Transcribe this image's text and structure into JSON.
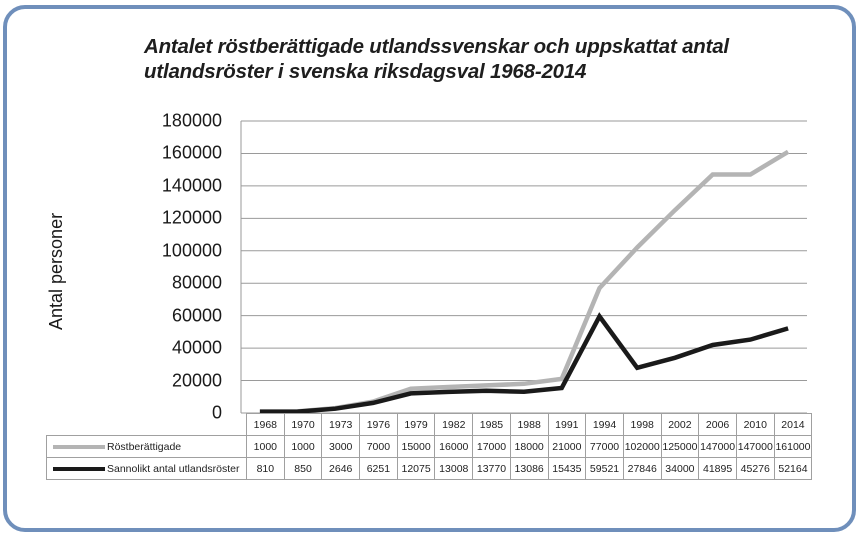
{
  "title": "Antalet röstberättigade utlandssvenskar och uppskattat antal utlandsröster i svenska riksdagsval 1968-2014",
  "title_line1": "Antalet röstberättigade utlandssvenskar och uppskattat antal",
  "title_line2": "utlandsröster i svenska riksdagsval 1968-2014",
  "colors": {
    "frame": "#6f8fbb",
    "series1": "#b4b4b4",
    "series2": "#1a1a1a",
    "grid": "#9a9a9a"
  },
  "chart_data": {
    "type": "line",
    "title": "Antalet röstberättigade utlandssvenskar och uppskattat antal utlandsröster i svenska riksdagsval 1968-2014",
    "xlabel": "",
    "ylabel": "Antal personer",
    "ylim": [
      0,
      180000
    ],
    "yticks": [
      "0",
      "20000",
      "40000",
      "60000",
      "80000",
      "100000",
      "120000",
      "140000",
      "160000",
      "180000"
    ],
    "grid": true,
    "legend_position": "data-table",
    "categories": [
      "1968",
      "1970",
      "1973",
      "1976",
      "1979",
      "1982",
      "1985",
      "1988",
      "1991",
      "1994",
      "1998",
      "2002",
      "2006",
      "2010",
      "2014"
    ],
    "series": [
      {
        "name": "Röstberättigade",
        "color": "#b4b4b4",
        "values": [
          1000,
          1000,
          3000,
          7000,
          15000,
          16000,
          17000,
          18000,
          21000,
          77000,
          102000,
          125000,
          147000,
          147000,
          161000
        ],
        "labels": [
          "1000",
          "1000",
          "3000",
          "7000",
          "15000",
          "16000",
          "17000",
          "18000",
          "21000",
          "77000",
          "102000",
          "125000",
          "147000",
          "147000",
          "161000"
        ]
      },
      {
        "name": "Sannolikt antal utlandsröster",
        "color": "#1a1a1a",
        "values": [
          810,
          850,
          2646,
          6251,
          12075,
          13008,
          13770,
          13086,
          15435,
          59521,
          27846,
          34000,
          41895,
          45276,
          52164
        ],
        "labels": [
          "810",
          "850",
          "2646",
          "6251",
          "12075",
          "13008",
          "13770",
          "13086",
          "15435",
          "59521",
          "27846",
          "34000",
          "41895",
          "45276",
          "52164"
        ]
      }
    ]
  }
}
